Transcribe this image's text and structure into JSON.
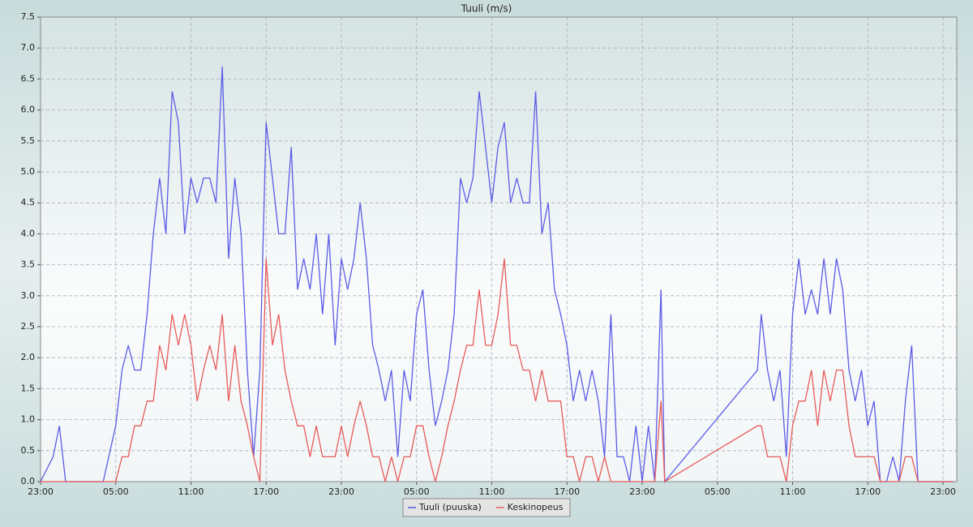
{
  "chart_data": {
    "type": "line",
    "title": "Tuuli (m/s)",
    "x": [
      0,
      1,
      1.5,
      2,
      3,
      4,
      5,
      6,
      6.5,
      7,
      7.5,
      8,
      8.5,
      9,
      9.5,
      10,
      10.5,
      11,
      11.5,
      12,
      12.5,
      13,
      13.5,
      14,
      14.5,
      15,
      15.5,
      16,
      16.5,
      17,
      17.5,
      18,
      18.5,
      19,
      19.5,
      20,
      20.5,
      21,
      21.5,
      22,
      22.5,
      23,
      23.5,
      24,
      24.5,
      25,
      25.5,
      26,
      26.5,
      27,
      27.5,
      28,
      28.5,
      29,
      29.5,
      30,
      30.5,
      31,
      31.5,
      32,
      32.5,
      33,
      33.5,
      34,
      34.5,
      35,
      35.5,
      36,
      36.5,
      37,
      37.5,
      38,
      38.5,
      39,
      39.5,
      40,
      40.5,
      41,
      41.5,
      42,
      42.5,
      43,
      43.5,
      44,
      44.5,
      45,
      45.5,
      46,
      46.5,
      47,
      47.5,
      48,
      48.5,
      49,
      49.5,
      49.8,
      57.2,
      57.5,
      58,
      58.5,
      59,
      59.5,
      60,
      60.5,
      61,
      61.5,
      62,
      62.5,
      63,
      63.5,
      64,
      64.5,
      65,
      65.5,
      66,
      66.5,
      67,
      67.5,
      68,
      68.5,
      69,
      69.5,
      70,
      70.5,
      71,
      72,
      72.8
    ],
    "series": [
      {
        "name": "Tuuli (puuska)",
        "color": "#5b5be6",
        "values": [
          0,
          0.4,
          0.9,
          0,
          0,
          0,
          0,
          0.9,
          1.8,
          2.2,
          1.8,
          1.8,
          2.7,
          4.0,
          4.9,
          4.0,
          6.3,
          5.8,
          4.0,
          4.9,
          4.5,
          4.9,
          4.9,
          4.5,
          6.7,
          3.6,
          4.9,
          4.0,
          1.8,
          0.4,
          1.8,
          5.8,
          4.9,
          4.0,
          4.0,
          5.4,
          3.1,
          3.6,
          3.1,
          4.0,
          2.7,
          4.0,
          2.2,
          3.6,
          3.1,
          3.6,
          4.5,
          3.6,
          2.2,
          1.8,
          1.3,
          1.8,
          0.4,
          1.8,
          1.3,
          2.7,
          3.1,
          1.8,
          0.9,
          1.3,
          1.8,
          2.7,
          4.9,
          4.5,
          4.9,
          6.3,
          5.4,
          4.5,
          5.4,
          5.8,
          4.5,
          4.9,
          4.5,
          4.5,
          6.3,
          4.0,
          4.5,
          3.1,
          2.7,
          2.2,
          1.3,
          1.8,
          1.3,
          1.8,
          1.3,
          0.4,
          2.7,
          0.4,
          0.4,
          0,
          0.9,
          0,
          0.9,
          0,
          3.1,
          0,
          1.8,
          2.7,
          1.8,
          1.3,
          1.8,
          0.4,
          2.7,
          3.6,
          2.7,
          3.1,
          2.7,
          3.6,
          2.7,
          3.6,
          3.1,
          1.8,
          1.3,
          1.8,
          0.9,
          1.3,
          0,
          0,
          0.4,
          0,
          1.3,
          2.2,
          0,
          0,
          0,
          0,
          0
        ]
      },
      {
        "name": "Keskinopeus",
        "color": "#e85a5a",
        "values": [
          0,
          0,
          0,
          0,
          0,
          0,
          0,
          0,
          0.4,
          0.4,
          0.9,
          0.9,
          1.3,
          1.3,
          2.2,
          1.8,
          2.7,
          2.2,
          2.7,
          2.2,
          1.3,
          1.8,
          2.2,
          1.8,
          2.7,
          1.3,
          2.2,
          1.3,
          0.9,
          0.4,
          0,
          3.6,
          2.2,
          2.7,
          1.8,
          1.3,
          0.9,
          0.9,
          0.4,
          0.9,
          0.4,
          0.4,
          0.4,
          0.9,
          0.4,
          0.9,
          1.3,
          0.9,
          0.4,
          0.4,
          0,
          0.4,
          0,
          0.4,
          0.4,
          0.9,
          0.9,
          0.4,
          0,
          0.4,
          0.9,
          1.3,
          1.8,
          2.2,
          2.2,
          3.1,
          2.2,
          2.2,
          2.7,
          3.6,
          2.2,
          2.2,
          1.8,
          1.8,
          1.3,
          1.8,
          1.3,
          1.3,
          1.3,
          0.4,
          0.4,
          0,
          0.4,
          0.4,
          0,
          0.4,
          0,
          0,
          0,
          0,
          0,
          0,
          0,
          0,
          1.3,
          0,
          0.9,
          0.9,
          0.4,
          0.4,
          0.4,
          0,
          0.9,
          1.3,
          1.3,
          1.8,
          0.9,
          1.8,
          1.3,
          1.8,
          1.8,
          0.9,
          0.4,
          0.4,
          0.4,
          0.4,
          0,
          0,
          0,
          0,
          0.4,
          0.4,
          0,
          0,
          0,
          0,
          0
        ]
      }
    ],
    "xlim": [
      0,
      73.1
    ],
    "xticks": [
      {
        "value": 0,
        "label": "23:00"
      },
      {
        "value": 6,
        "label": "05:00"
      },
      {
        "value": 12,
        "label": "11:00"
      },
      {
        "value": 18,
        "label": "17:00"
      },
      {
        "value": 24,
        "label": "23:00"
      },
      {
        "value": 30,
        "label": "05:00"
      },
      {
        "value": 36,
        "label": "11:00"
      },
      {
        "value": 42,
        "label": "17:00"
      },
      {
        "value": 48,
        "label": "23:00"
      },
      {
        "value": 54,
        "label": "05:00"
      },
      {
        "value": 60,
        "label": "11:00"
      },
      {
        "value": 66,
        "label": "17:00"
      },
      {
        "value": 72,
        "label": "23:00"
      }
    ],
    "ylim": [
      0,
      7.5
    ],
    "yticks": [
      {
        "value": 0,
        "label": "0.0"
      },
      0.5,
      {
        "value": 1,
        "label": "1.0"
      },
      1.5,
      {
        "value": 2,
        "label": "2.0"
      },
      2.5,
      {
        "value": 3,
        "label": "3.0"
      },
      3.5,
      {
        "value": 4,
        "label": "4.0"
      },
      4.5,
      {
        "value": 5,
        "label": "5.0"
      },
      5.5,
      {
        "value": 6,
        "label": "6.0"
      },
      6.5,
      {
        "value": 7,
        "label": "7.0"
      },
      7.5
    ],
    "grid": true,
    "legend": "bottom"
  }
}
